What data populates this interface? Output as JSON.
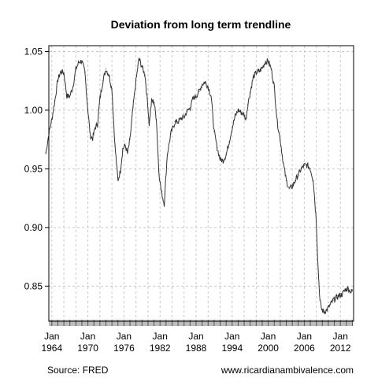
{
  "chart_data": {
    "type": "line",
    "title": "Deviation from long term trendline",
    "xlabel": "",
    "ylabel": "",
    "ylim": [
      0.82,
      1.055
    ],
    "xlim": [
      1963.5,
      2014.2
    ],
    "y_ticks": [
      0.85,
      0.9,
      0.95,
      1.0,
      1.05
    ],
    "y_tick_labels": [
      "0.85",
      "0.90",
      "0.95",
      "1.00",
      "1.05"
    ],
    "x_ticks": [
      {
        "year": 1964,
        "line1": "Jan",
        "line2": "1964"
      },
      {
        "year": 1970,
        "line1": "Jan",
        "line2": "1970"
      },
      {
        "year": 1976,
        "line1": "Jan",
        "line2": "1976"
      },
      {
        "year": 1982,
        "line1": "Jan",
        "line2": "1982"
      },
      {
        "year": 1988,
        "line1": "Jan",
        "line2": "1988"
      },
      {
        "year": 1994,
        "line1": "Jan",
        "line2": "1994"
      },
      {
        "year": 2000,
        "line1": "Jan",
        "line2": "2000"
      },
      {
        "year": 2006,
        "line1": "Jan",
        "line2": "2006"
      },
      {
        "year": 2012,
        "line1": "Jan",
        "line2": "2012"
      }
    ],
    "grid": true,
    "series": [
      {
        "values": [
          [
            1963.0,
            0.963
          ],
          [
            1963.5,
            0.98
          ],
          [
            1964.0,
            0.992
          ],
          [
            1964.5,
            1.008
          ],
          [
            1965.0,
            1.026
          ],
          [
            1965.5,
            1.033
          ],
          [
            1966.0,
            1.032
          ],
          [
            1966.5,
            1.012
          ],
          [
            1967.0,
            1.012
          ],
          [
            1967.5,
            1.02
          ],
          [
            1968.0,
            1.035
          ],
          [
            1968.5,
            1.041
          ],
          [
            1969.0,
            1.042
          ],
          [
            1969.5,
            1.032
          ],
          [
            1970.0,
            1.0
          ],
          [
            1970.4,
            0.978
          ],
          [
            1970.8,
            0.976
          ],
          [
            1971.2,
            0.985
          ],
          [
            1971.6,
            0.988
          ],
          [
            1972.0,
            1.01
          ],
          [
            1972.5,
            1.025
          ],
          [
            1973.0,
            1.035
          ],
          [
            1973.5,
            1.03
          ],
          [
            1974.0,
            1.018
          ],
          [
            1974.5,
            0.97
          ],
          [
            1975.0,
            0.94
          ],
          [
            1975.4,
            0.948
          ],
          [
            1975.8,
            0.967
          ],
          [
            1976.2,
            0.97
          ],
          [
            1976.6,
            0.963
          ],
          [
            1977.0,
            0.975
          ],
          [
            1977.5,
            1.002
          ],
          [
            1978.0,
            1.025
          ],
          [
            1978.5,
            1.044
          ],
          [
            1979.0,
            1.037
          ],
          [
            1979.5,
            1.03
          ],
          [
            1980.0,
            1.002
          ],
          [
            1980.2,
            0.988
          ],
          [
            1980.6,
            1.008
          ],
          [
            1981.0,
            1.007
          ],
          [
            1981.4,
            0.992
          ],
          [
            1981.8,
            0.948
          ],
          [
            1982.2,
            0.931
          ],
          [
            1982.7,
            0.92
          ],
          [
            1983.2,
            0.962
          ],
          [
            1983.8,
            0.98
          ],
          [
            1984.5,
            0.99
          ],
          [
            1985.0,
            0.99
          ],
          [
            1985.5,
            0.993
          ],
          [
            1986.0,
            0.994
          ],
          [
            1986.5,
            0.999
          ],
          [
            1987.0,
            1.002
          ],
          [
            1987.5,
            1.01
          ],
          [
            1988.0,
            1.012
          ],
          [
            1988.5,
            1.016
          ],
          [
            1989.0,
            1.022
          ],
          [
            1989.5,
            1.024
          ],
          [
            1990.0,
            1.02
          ],
          [
            1990.5,
            1.012
          ],
          [
            1991.0,
            0.982
          ],
          [
            1991.5,
            0.968
          ],
          [
            1992.0,
            0.958
          ],
          [
            1992.5,
            0.957
          ],
          [
            1993.0,
            0.962
          ],
          [
            1993.5,
            0.973
          ],
          [
            1994.0,
            0.985
          ],
          [
            1994.5,
            0.995
          ],
          [
            1995.0,
            1.0
          ],
          [
            1995.5,
            0.998
          ],
          [
            1996.0,
            0.996
          ],
          [
            1996.3,
            0.992
          ],
          [
            1996.6,
            1.005
          ],
          [
            1997.0,
            1.015
          ],
          [
            1997.5,
            1.028
          ],
          [
            1998.0,
            1.032
          ],
          [
            1998.5,
            1.033
          ],
          [
            1999.0,
            1.036
          ],
          [
            1999.5,
            1.041
          ],
          [
            2000.0,
            1.042
          ],
          [
            2000.5,
            1.035
          ],
          [
            2001.0,
            1.02
          ],
          [
            2001.5,
            0.99
          ],
          [
            2002.0,
            0.975
          ],
          [
            2002.5,
            0.955
          ],
          [
            2003.0,
            0.94
          ],
          [
            2003.5,
            0.933
          ],
          [
            2004.0,
            0.935
          ],
          [
            2004.5,
            0.94
          ],
          [
            2005.0,
            0.945
          ],
          [
            2005.5,
            0.95
          ],
          [
            2006.0,
            0.953
          ],
          [
            2006.5,
            0.953
          ],
          [
            2007.0,
            0.95
          ],
          [
            2007.5,
            0.94
          ],
          [
            2008.0,
            0.905
          ],
          [
            2008.3,
            0.865
          ],
          [
            2008.6,
            0.838
          ],
          [
            2008.9,
            0.83
          ],
          [
            2009.3,
            0.828
          ],
          [
            2009.8,
            0.83
          ],
          [
            2010.3,
            0.834
          ],
          [
            2010.8,
            0.838
          ],
          [
            2011.3,
            0.84
          ],
          [
            2011.8,
            0.842
          ],
          [
            2012.3,
            0.843
          ],
          [
            2012.8,
            0.847
          ],
          [
            2013.3,
            0.848
          ],
          [
            2013.8,
            0.845
          ],
          [
            2014.0,
            0.846
          ]
        ]
      }
    ],
    "colors": {
      "line": "#333333",
      "grid": "#c8c8c8",
      "rug": "#bdbdbd",
      "frame": "#000000"
    }
  },
  "footer": {
    "source": "Source: FRED",
    "website": "www.ricardianambivalence.com"
  }
}
